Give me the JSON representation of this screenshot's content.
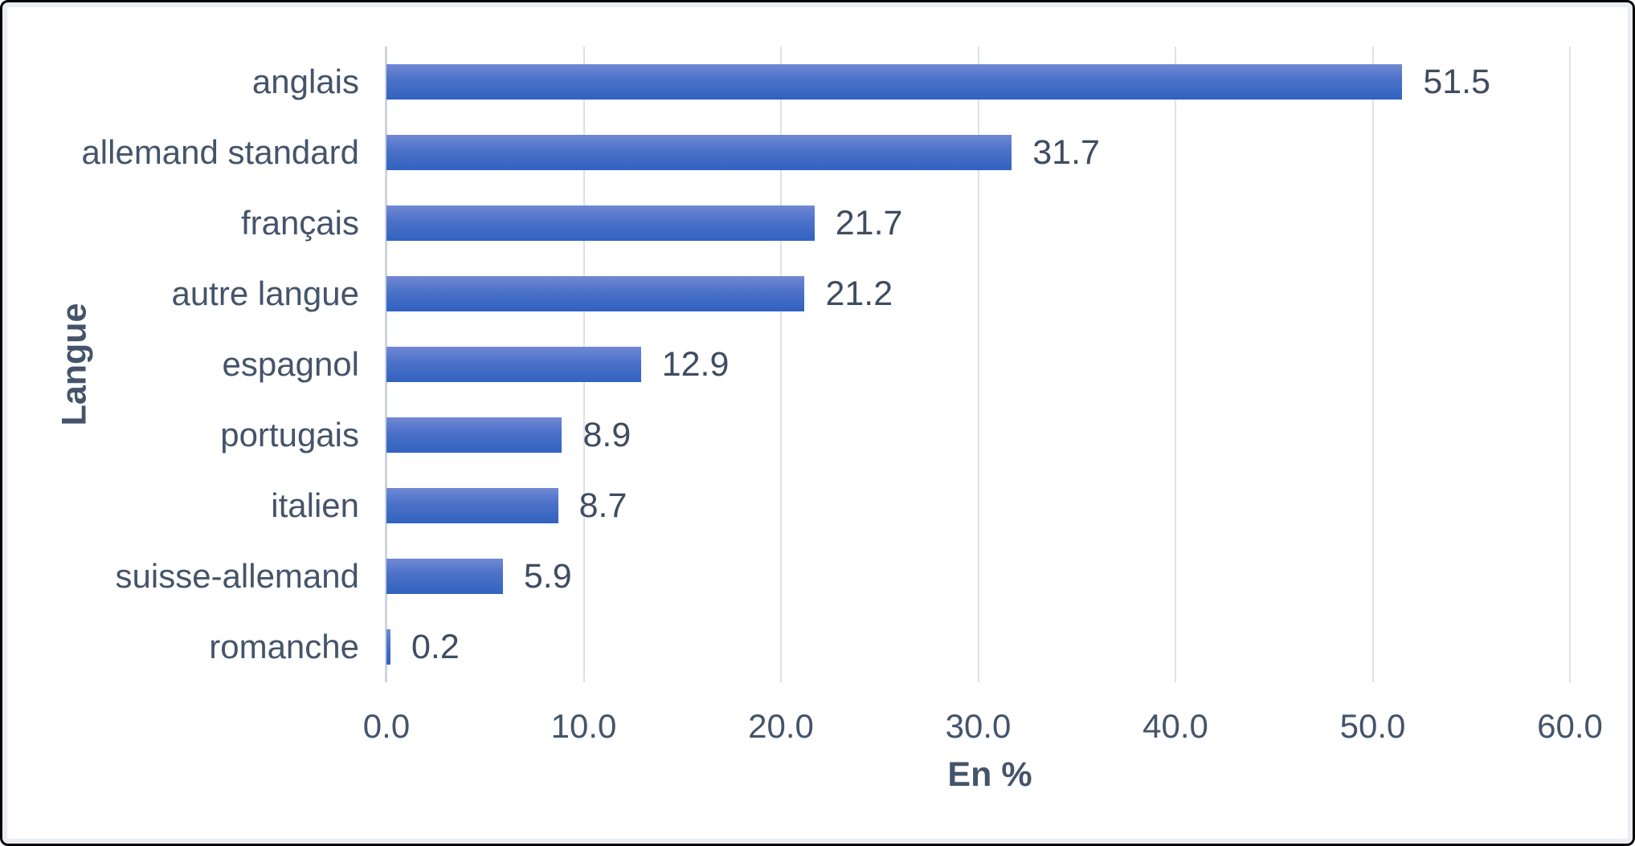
{
  "chart_data": {
    "type": "bar",
    "orientation": "horizontal",
    "categories": [
      "anglais",
      "allemand standard",
      "français",
      "autre langue",
      "espagnol",
      "portugais",
      "italien",
      "suisse-allemand",
      "romanche"
    ],
    "values": [
      51.5,
      31.7,
      21.7,
      21.2,
      12.9,
      8.9,
      8.7,
      5.9,
      0.2
    ],
    "value_labels": [
      "51.5",
      "31.7",
      "21.7",
      "21.2",
      "12.9",
      "8.9",
      "8.7",
      "5.9",
      "0.2"
    ],
    "title": "",
    "xlabel": "En %",
    "ylabel": "Langue",
    "xlim": [
      0,
      60
    ],
    "xtick_labels": [
      "0.0",
      "10.0",
      "20.0",
      "30.0",
      "40.0",
      "50.0",
      "60.0"
    ],
    "grid": "vertical-on",
    "legend": "none",
    "colors": {
      "bar_gradient_top": "#7089d4",
      "bar_gradient_bottom": "#3162c0",
      "text": "#44546A",
      "gridline": "#dde1e7",
      "axis_line": "#ccd4dd",
      "background": "#ffffff",
      "border": "#050505"
    }
  }
}
